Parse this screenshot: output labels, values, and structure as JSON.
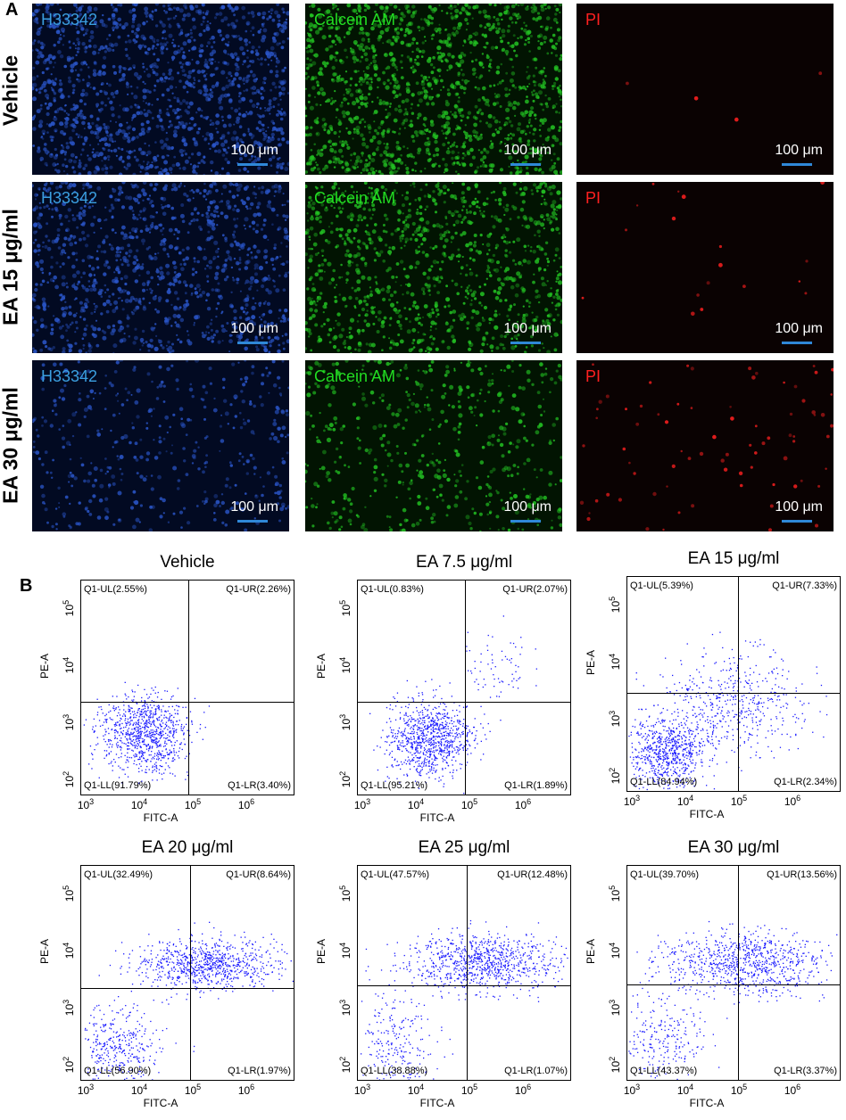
{
  "panel_a": {
    "letter": "A",
    "rows": [
      {
        "label": "Vehicle",
        "density": [
          1.0,
          1.0,
          0.02
        ]
      },
      {
        "label": "EA 15 μg/ml",
        "density": [
          0.8,
          0.75,
          0.08
        ]
      },
      {
        "label": "EA 30 μg/ml",
        "density": [
          0.3,
          0.35,
          0.35
        ]
      }
    ],
    "channels": [
      {
        "label": "H33342",
        "color": "#3b9fe0",
        "dot": "#2a55c8",
        "bg": "#020a22",
        "scale_color": "#2f88d8"
      },
      {
        "label": "Calcein AM",
        "color": "#22dd22",
        "dot": "#22c022",
        "bg": "#021402",
        "scale_color": "#2f88d8"
      },
      {
        "label": "PI",
        "color": "#ff2020",
        "dot": "#ff2020",
        "bg": "#0a0202",
        "scale_color": "#2f88d8"
      }
    ],
    "scale_label": "100 μm"
  },
  "panel_b": {
    "letter": "B",
    "x_axis_title": "FITC-A",
    "y_axis_title": "PE-A",
    "dot_color": "#1a1aff",
    "plots": [
      {
        "title": "Vehicle",
        "ul": "Q1-UL(2.55%)",
        "ur": "Q1-UR(2.26%)",
        "ll": "Q1-LL(91.79%)",
        "lr": "Q1-LR(3.40%)"
      },
      {
        "title": "EA 7.5 μg/ml",
        "ul": "Q1-UL(0.83%)",
        "ur": "Q1-UR(2.07%)",
        "ll": "Q1-LL(95.21%)",
        "lr": "Q1-LR(1.89%)"
      },
      {
        "title": "EA 15 μg/ml",
        "ul": "Q1-UL(5.39%)",
        "ur": "Q1-UR(7.33%)",
        "ll": "Q1-LL(84.94%)",
        "lr": "Q1-LR(2.34%)"
      },
      {
        "title": "EA 20 μg/ml",
        "ul": "Q1-UL(32.49%)",
        "ur": "Q1-UR(8.64%)",
        "ll": "Q1-LL(56.90%)",
        "lr": "Q1-LR(1.97%)"
      },
      {
        "title": "EA 25 μg/ml",
        "ul": "Q1-UL(47.57%)",
        "ur": "Q1-UR(12.48%)",
        "ll": "Q1-LL(38.88%)",
        "lr": "Q1-LR(1.07%)"
      },
      {
        "title": "EA 30 μg/ml",
        "ul": "Q1-UL(39.70%)",
        "ur": "Q1-UR(13.56%)",
        "ll": "Q1-LL(43.37%)",
        "lr": "Q1-LR(3.37%)"
      }
    ]
  },
  "chart_data": {
    "type": "scatter",
    "x_axis": {
      "label": "FITC-A",
      "scale": "log",
      "ticks": [
        "10^3",
        "10^4",
        "10^5",
        "10^6"
      ]
    },
    "y_axis": {
      "label": "PE-A",
      "scale": "log",
      "ticks": [
        "10^2",
        "10^3",
        "10^4",
        "10^5"
      ]
    },
    "quadrant_percentages": [
      {
        "plot": "Vehicle",
        "UL": 2.55,
        "UR": 2.26,
        "LL": 91.79,
        "LR": 3.4
      },
      {
        "plot": "EA 7.5 μg/ml",
        "UL": 0.83,
        "UR": 2.07,
        "LL": 95.21,
        "LR": 1.89
      },
      {
        "plot": "EA 15 μg/ml",
        "UL": 5.39,
        "UR": 7.33,
        "LL": 84.94,
        "LR": 2.34
      },
      {
        "plot": "EA 20 μg/ml",
        "UL": 32.49,
        "UR": 8.64,
        "LL": 56.9,
        "LR": 1.97
      },
      {
        "plot": "EA 25 μg/ml",
        "UL": 47.57,
        "UR": 12.48,
        "LL": 38.88,
        "LR": 1.07
      },
      {
        "plot": "EA 30 μg/ml",
        "UL": 39.7,
        "UR": 13.56,
        "LL": 43.37,
        "LR": 3.37
      }
    ]
  }
}
